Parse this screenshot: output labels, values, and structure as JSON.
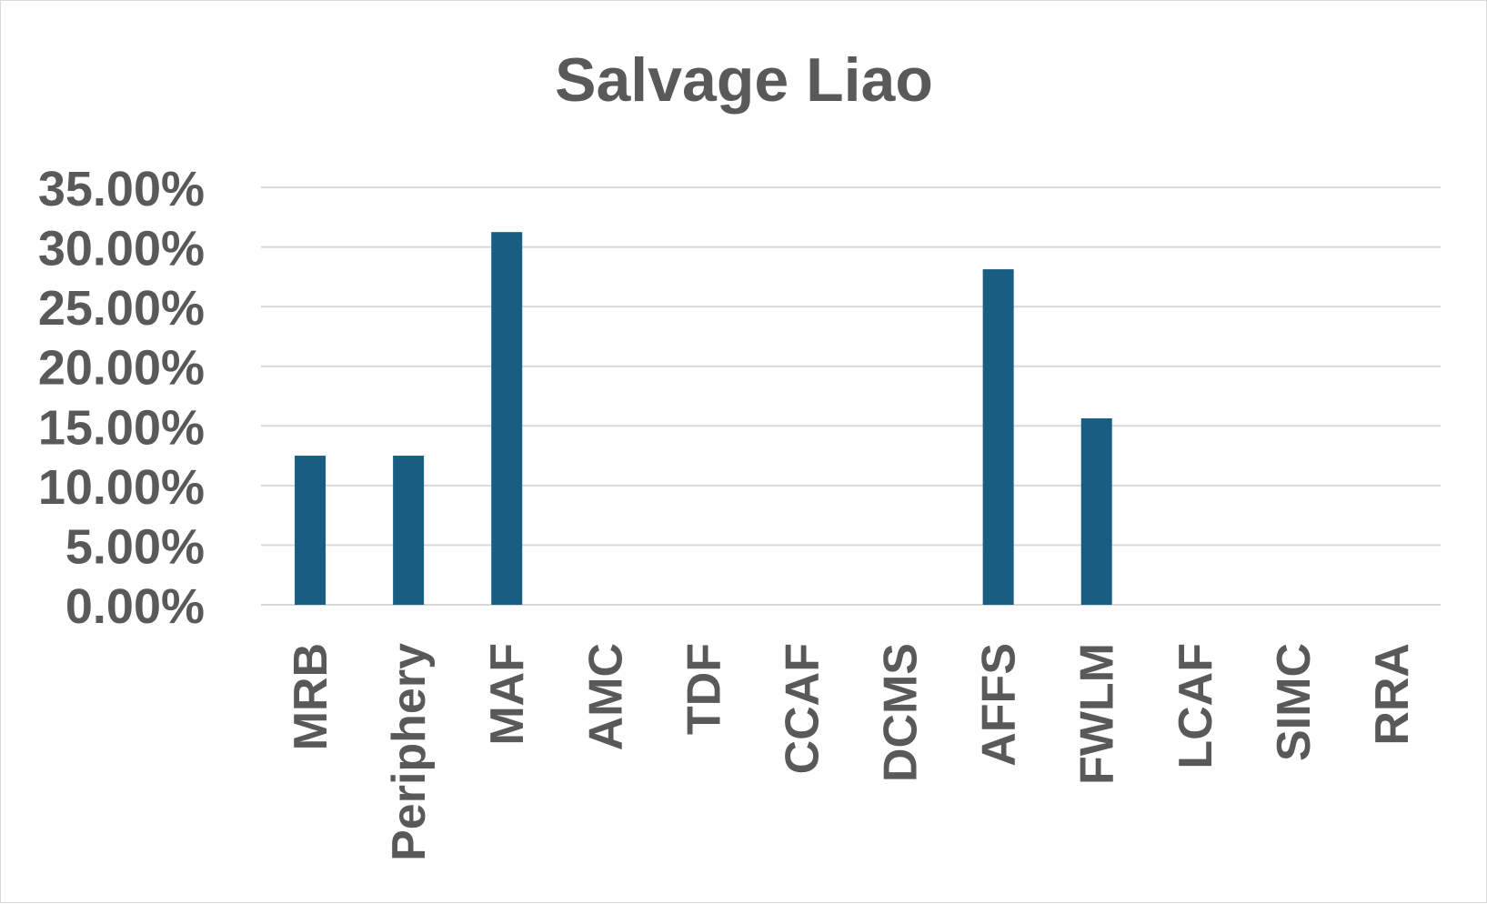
{
  "chart_data": {
    "type": "bar",
    "title": "Salvage Liao",
    "xlabel": "",
    "ylabel": "",
    "categories": [
      "MRB",
      "Periphery",
      "MAF",
      "AMC",
      "TDF",
      "CCAF",
      "DCMS",
      "AFFS",
      "FWLM",
      "LCAF",
      "SIMC",
      "RRA"
    ],
    "values": [
      12.5,
      12.5,
      31.25,
      0,
      0,
      0,
      0,
      28.13,
      15.63,
      0,
      0,
      0
    ],
    "ylim": [
      0,
      35
    ],
    "y_ticks": [
      "0.00%",
      "5.00%",
      "10.00%",
      "15.00%",
      "20.00%",
      "25.00%",
      "30.00%",
      "35.00%"
    ],
    "y_format": "percent",
    "grid": true,
    "legend": "none"
  },
  "colors": {
    "bar": "#175e82",
    "text": "#595959",
    "grid": "#d9d9d9",
    "frame": "#d9d9d9"
  }
}
